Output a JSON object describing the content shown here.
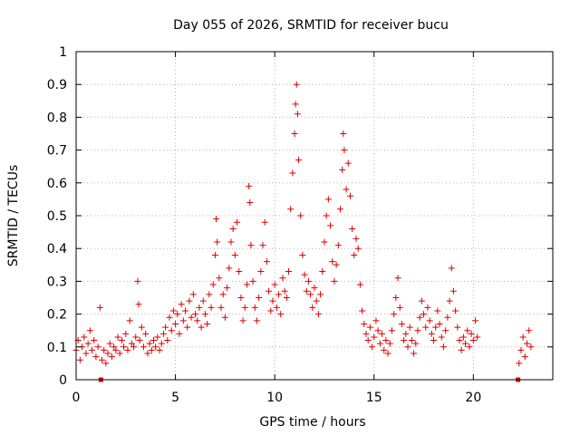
{
  "chart_data": {
    "type": "scatter",
    "title": "Day 055 of 2026, SRMTID for receiver bucu",
    "xlabel": "GPS time / hours",
    "ylabel": "SRMTID / TECUs",
    "xlim": [
      0,
      24
    ],
    "ylim": [
      0,
      1
    ],
    "xticks": [
      0,
      5,
      10,
      15,
      20
    ],
    "xtick_labels": [
      "0",
      "5",
      "10",
      "15",
      "20"
    ],
    "yticks": [
      0,
      0.1,
      0.2,
      0.3,
      0.4,
      0.5,
      0.6,
      0.7,
      0.8,
      0.9,
      1
    ],
    "ytick_labels": [
      "0",
      "0.1",
      "0.2",
      "0.3",
      "0.4",
      "0.5",
      "0.6",
      "0.7",
      "0.8",
      "0.9",
      "1"
    ],
    "grid": true,
    "marker": "+",
    "color": "#dd0000",
    "series": [
      {
        "name": "SRMTID",
        "points": [
          [
            0.0,
            0.09
          ],
          [
            0.1,
            0.12
          ],
          [
            0.2,
            0.06
          ],
          [
            0.3,
            0.1
          ],
          [
            0.4,
            0.13
          ],
          [
            0.5,
            0.08
          ],
          [
            0.6,
            0.11
          ],
          [
            0.7,
            0.15
          ],
          [
            0.8,
            0.09
          ],
          [
            0.9,
            0.12
          ],
          [
            1.0,
            0.07
          ],
          [
            1.1,
            0.1
          ],
          [
            1.2,
            0.22
          ],
          [
            1.3,
            0.06
          ],
          [
            1.4,
            0.09
          ],
          [
            1.5,
            0.05
          ],
          [
            1.6,
            0.08
          ],
          [
            1.7,
            0.11
          ],
          [
            1.8,
            0.07
          ],
          [
            1.9,
            0.1
          ],
          [
            2.0,
            0.09
          ],
          [
            2.1,
            0.13
          ],
          [
            2.2,
            0.08
          ],
          [
            2.3,
            0.12
          ],
          [
            2.4,
            0.1
          ],
          [
            2.5,
            0.14
          ],
          [
            2.6,
            0.09
          ],
          [
            2.7,
            0.18
          ],
          [
            2.8,
            0.11
          ],
          [
            2.9,
            0.1
          ],
          [
            3.0,
            0.13
          ],
          [
            3.1,
            0.3
          ],
          [
            3.15,
            0.23
          ],
          [
            3.2,
            0.12
          ],
          [
            3.3,
            0.16
          ],
          [
            3.4,
            0.1
          ],
          [
            3.5,
            0.14
          ],
          [
            3.6,
            0.08
          ],
          [
            3.7,
            0.11
          ],
          [
            3.8,
            0.09
          ],
          [
            3.9,
            0.12
          ],
          [
            4.0,
            0.1
          ],
          [
            4.1,
            0.13
          ],
          [
            4.2,
            0.09
          ],
          [
            4.3,
            0.11
          ],
          [
            4.4,
            0.14
          ],
          [
            4.5,
            0.16
          ],
          [
            4.6,
            0.12
          ],
          [
            4.7,
            0.19
          ],
          [
            4.8,
            0.15
          ],
          [
            4.9,
            0.21
          ],
          [
            5.0,
            0.17
          ],
          [
            5.1,
            0.2
          ],
          [
            5.2,
            0.14
          ],
          [
            5.3,
            0.23
          ],
          [
            5.4,
            0.18
          ],
          [
            5.5,
            0.21
          ],
          [
            5.6,
            0.16
          ],
          [
            5.7,
            0.24
          ],
          [
            5.8,
            0.19
          ],
          [
            5.9,
            0.26
          ],
          [
            6.0,
            0.2
          ],
          [
            6.1,
            0.18
          ],
          [
            6.2,
            0.22
          ],
          [
            6.3,
            0.16
          ],
          [
            6.4,
            0.24
          ],
          [
            6.5,
            0.2
          ],
          [
            6.6,
            0.17
          ],
          [
            6.7,
            0.26
          ],
          [
            6.8,
            0.22
          ],
          [
            6.9,
            0.29
          ],
          [
            7.0,
            0.38
          ],
          [
            7.05,
            0.49
          ],
          [
            7.1,
            0.42
          ],
          [
            7.2,
            0.31
          ],
          [
            7.3,
            0.22
          ],
          [
            7.4,
            0.26
          ],
          [
            7.5,
            0.19
          ],
          [
            7.6,
            0.28
          ],
          [
            7.7,
            0.34
          ],
          [
            7.8,
            0.42
          ],
          [
            7.9,
            0.46
          ],
          [
            8.0,
            0.38
          ],
          [
            8.1,
            0.48
          ],
          [
            8.2,
            0.33
          ],
          [
            8.3,
            0.25
          ],
          [
            8.4,
            0.18
          ],
          [
            8.5,
            0.22
          ],
          [
            8.6,
            0.29
          ],
          [
            8.7,
            0.59
          ],
          [
            8.75,
            0.54
          ],
          [
            8.8,
            0.41
          ],
          [
            8.9,
            0.3
          ],
          [
            9.0,
            0.22
          ],
          [
            9.1,
            0.18
          ],
          [
            9.2,
            0.25
          ],
          [
            9.3,
            0.33
          ],
          [
            9.4,
            0.41
          ],
          [
            9.5,
            0.48
          ],
          [
            9.6,
            0.36
          ],
          [
            9.7,
            0.27
          ],
          [
            9.8,
            0.21
          ],
          [
            9.9,
            0.24
          ],
          [
            10.0,
            0.29
          ],
          [
            10.1,
            0.22
          ],
          [
            10.2,
            0.26
          ],
          [
            10.3,
            0.2
          ],
          [
            10.4,
            0.31
          ],
          [
            10.5,
            0.27
          ],
          [
            10.6,
            0.25
          ],
          [
            10.7,
            0.33
          ],
          [
            10.8,
            0.52
          ],
          [
            10.9,
            0.63
          ],
          [
            11.0,
            0.75
          ],
          [
            11.05,
            0.84
          ],
          [
            11.1,
            0.9
          ],
          [
            11.15,
            0.81
          ],
          [
            11.2,
            0.67
          ],
          [
            11.3,
            0.5
          ],
          [
            11.4,
            0.38
          ],
          [
            11.5,
            0.32
          ],
          [
            11.6,
            0.27
          ],
          [
            11.7,
            0.3
          ],
          [
            11.8,
            0.26
          ],
          [
            11.9,
            0.22
          ],
          [
            12.0,
            0.28
          ],
          [
            12.1,
            0.24
          ],
          [
            12.2,
            0.2
          ],
          [
            12.3,
            0.26
          ],
          [
            12.4,
            0.33
          ],
          [
            12.5,
            0.42
          ],
          [
            12.6,
            0.5
          ],
          [
            12.7,
            0.55
          ],
          [
            12.8,
            0.47
          ],
          [
            12.9,
            0.36
          ],
          [
            13.0,
            0.3
          ],
          [
            13.1,
            0.35
          ],
          [
            13.2,
            0.41
          ],
          [
            13.3,
            0.52
          ],
          [
            13.4,
            0.64
          ],
          [
            13.45,
            0.75
          ],
          [
            13.5,
            0.7
          ],
          [
            13.6,
            0.58
          ],
          [
            13.7,
            0.66
          ],
          [
            13.8,
            0.56
          ],
          [
            13.9,
            0.46
          ],
          [
            14.0,
            0.38
          ],
          [
            14.1,
            0.43
          ],
          [
            14.2,
            0.4
          ],
          [
            14.3,
            0.29
          ],
          [
            14.4,
            0.21
          ],
          [
            14.5,
            0.17
          ],
          [
            14.6,
            0.14
          ],
          [
            14.7,
            0.12
          ],
          [
            14.8,
            0.16
          ],
          [
            14.9,
            0.1
          ],
          [
            15.0,
            0.13
          ],
          [
            15.1,
            0.18
          ],
          [
            15.2,
            0.15
          ],
          [
            15.3,
            0.11
          ],
          [
            15.4,
            0.14
          ],
          [
            15.5,
            0.09
          ],
          [
            15.6,
            0.12
          ],
          [
            15.7,
            0.08
          ],
          [
            15.8,
            0.11
          ],
          [
            15.9,
            0.15
          ],
          [
            16.0,
            0.2
          ],
          [
            16.1,
            0.25
          ],
          [
            16.2,
            0.31
          ],
          [
            16.3,
            0.22
          ],
          [
            16.4,
            0.17
          ],
          [
            16.5,
            0.12
          ],
          [
            16.6,
            0.14
          ],
          [
            16.7,
            0.1
          ],
          [
            16.8,
            0.16
          ],
          [
            16.9,
            0.12
          ],
          [
            17.0,
            0.08
          ],
          [
            17.1,
            0.11
          ],
          [
            17.2,
            0.15
          ],
          [
            17.3,
            0.19
          ],
          [
            17.4,
            0.24
          ],
          [
            17.5,
            0.2
          ],
          [
            17.6,
            0.16
          ],
          [
            17.7,
            0.22
          ],
          [
            17.8,
            0.18
          ],
          [
            17.9,
            0.14
          ],
          [
            18.0,
            0.12
          ],
          [
            18.1,
            0.16
          ],
          [
            18.2,
            0.21
          ],
          [
            18.3,
            0.17
          ],
          [
            18.4,
            0.13
          ],
          [
            18.5,
            0.1
          ],
          [
            18.6,
            0.15
          ],
          [
            18.7,
            0.19
          ],
          [
            18.8,
            0.24
          ],
          [
            18.9,
            0.34
          ],
          [
            19.0,
            0.27
          ],
          [
            19.1,
            0.21
          ],
          [
            19.2,
            0.16
          ],
          [
            19.3,
            0.12
          ],
          [
            19.4,
            0.09
          ],
          [
            19.5,
            0.13
          ],
          [
            19.6,
            0.11
          ],
          [
            19.7,
            0.15
          ],
          [
            19.8,
            0.1
          ],
          [
            19.9,
            0.14
          ],
          [
            20.0,
            0.12
          ],
          [
            20.1,
            0.18
          ],
          [
            20.2,
            0.13
          ],
          [
            22.3,
            0.05
          ],
          [
            22.4,
            0.09
          ],
          [
            22.5,
            0.13
          ],
          [
            22.6,
            0.07
          ],
          [
            22.7,
            0.11
          ],
          [
            22.8,
            0.15
          ],
          [
            22.9,
            0.1
          ]
        ]
      }
    ],
    "axis_markers": {
      "shape": "square",
      "x": [
        1.25,
        22.25
      ],
      "y": 0
    }
  }
}
